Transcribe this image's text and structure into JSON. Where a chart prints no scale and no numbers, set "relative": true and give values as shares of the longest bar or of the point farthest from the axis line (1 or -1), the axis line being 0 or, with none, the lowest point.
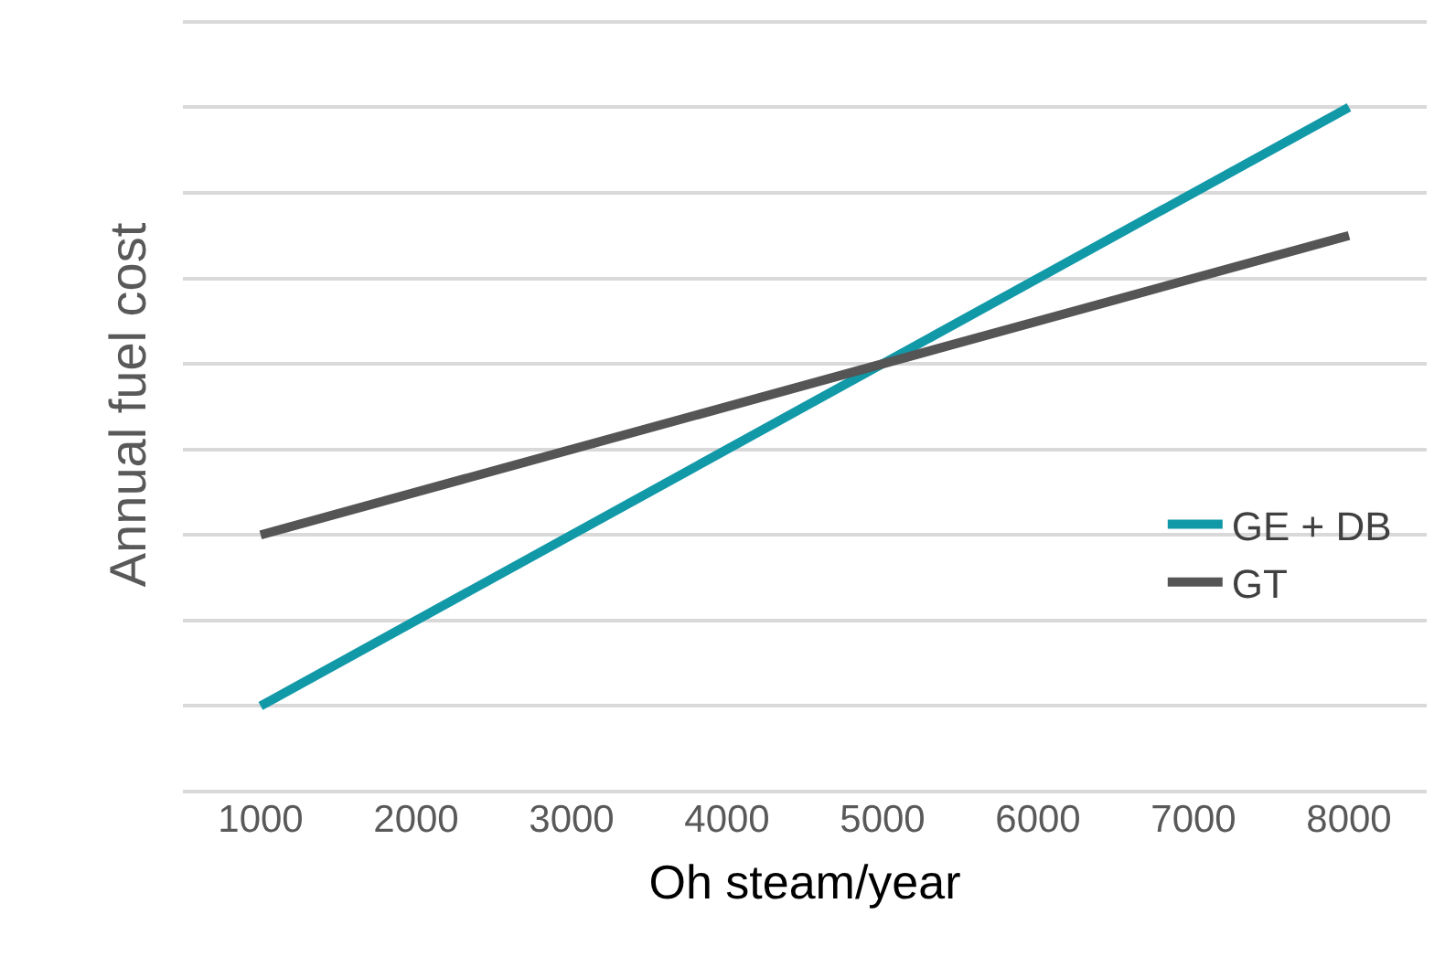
{
  "chart_data": {
    "type": "line",
    "xlabel": "Oh steam/year",
    "ylabel": "Annual fuel cost",
    "x": [
      1000,
      8000
    ],
    "xlim": [
      500,
      8500
    ],
    "xticks": [
      1000,
      2000,
      3000,
      4000,
      5000,
      6000,
      7000,
      8000
    ],
    "relative": true,
    "grid": "y",
    "legend": "bottom right",
    "marker": "none",
    "line_style": "solid",
    "series": [
      {
        "name": "GE + DB",
        "color": "#1199a8",
        "values": [
          0.125,
          1
        ]
      },
      {
        "name": "GT",
        "color": "#555555",
        "values": [
          0.375,
          0.8125
        ]
      }
    ]
  }
}
